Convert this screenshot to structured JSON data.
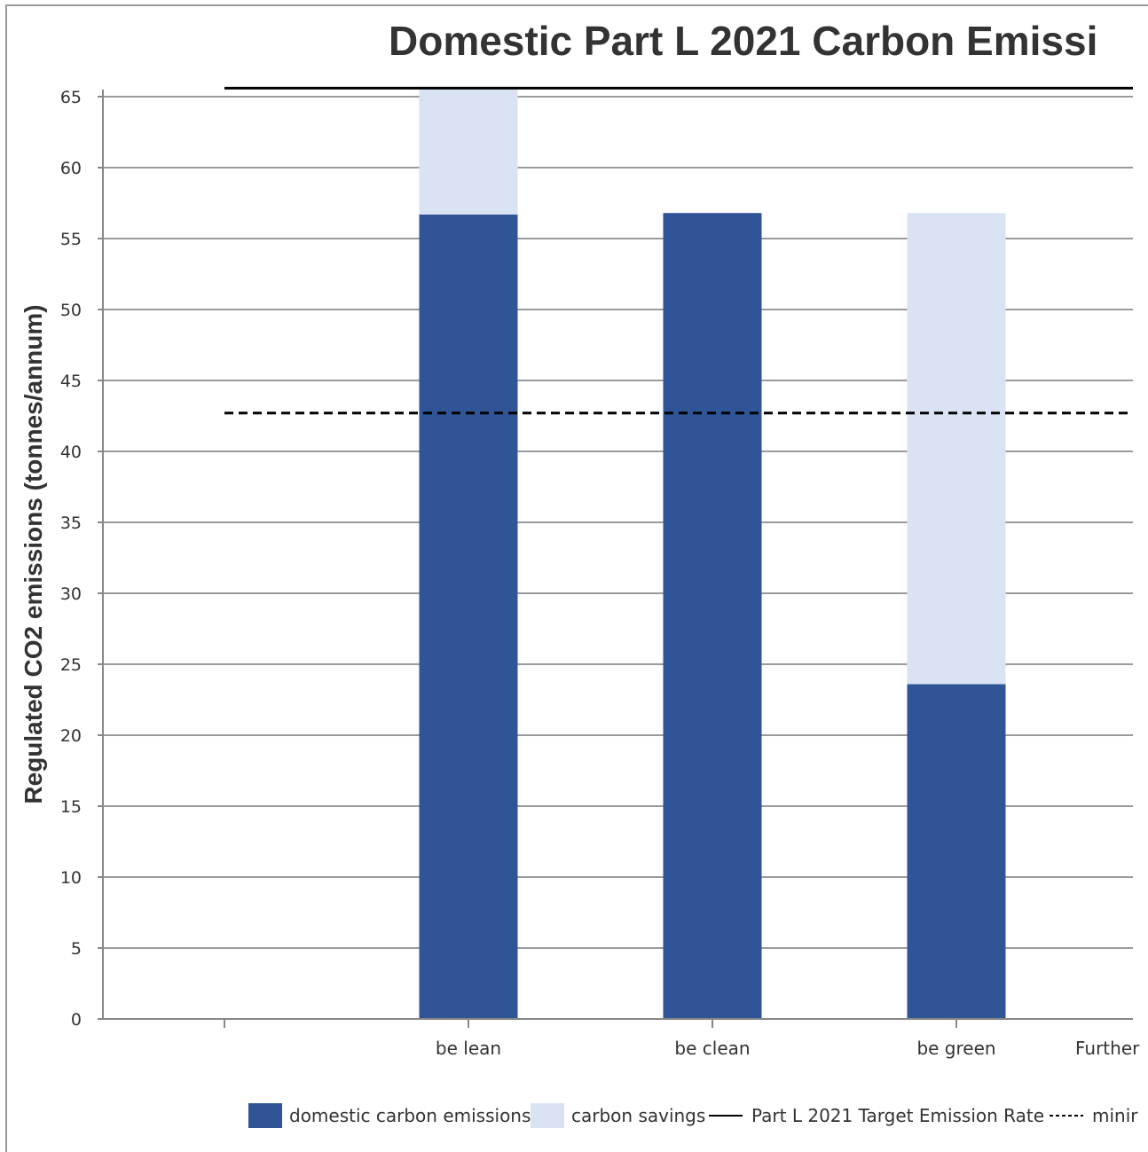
{
  "chart_data": {
    "type": "bar",
    "stacked": true,
    "title": "Domestic Part L 2021 Carbon Emissi",
    "xlabel": "",
    "ylabel": "Regulated CO2 emissions (tonnes/annum)",
    "categories": [
      "",
      "be lean",
      "be clean",
      "be green",
      "Further"
    ],
    "series": [
      {
        "name": "domestic carbon emissions",
        "values": [
          null,
          56.7,
          56.8,
          23.6,
          null
        ],
        "color": "#2f5597"
      },
      {
        "name": "carbon savings",
        "values": [
          null,
          9.0,
          null,
          33.2,
          null
        ],
        "color": "#dae3f3"
      }
    ],
    "reference_lines": [
      {
        "name": "Part L 2021 Target Emission Rate",
        "value": 65.6,
        "style": "solid",
        "color": "#000000"
      },
      {
        "name": "minir",
        "value": 42.7,
        "style": "dashed",
        "color": "#000000"
      }
    ],
    "ylim": [
      0,
      65
    ],
    "yticks": [
      0,
      5,
      10,
      15,
      20,
      25,
      30,
      35,
      40,
      45,
      50,
      55,
      60,
      65
    ],
    "grid": true,
    "legend_position": "bottom"
  }
}
